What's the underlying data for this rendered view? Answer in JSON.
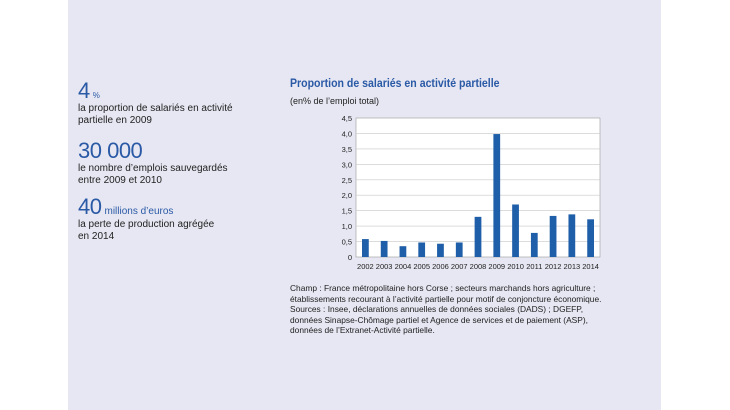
{
  "stats": [
    {
      "value": "4",
      "unit": "%",
      "desc": [
        "la proportion de salariés en activité",
        "partielle en 2009"
      ]
    },
    {
      "value": "30 000",
      "unit": "",
      "desc": [
        "le nombre d’emplois sauvegardés",
        "entre 2009 et 2010"
      ]
    },
    {
      "value": "40",
      "unit": "millions d’euros",
      "desc": [
        "la perte de production agrégée",
        "en 2014"
      ]
    }
  ],
  "chart_data": {
    "type": "bar",
    "title": "Proportion de salariés en activité partielle",
    "subtitle": "(en% de l’emploi total)",
    "categories": [
      "2002",
      "2003",
      "2004",
      "2005",
      "2006",
      "2007",
      "2008",
      "2009",
      "2010",
      "2011",
      "2012",
      "2013",
      "2014"
    ],
    "values": [
      0.58,
      0.52,
      0.35,
      0.47,
      0.43,
      0.47,
      1.3,
      3.98,
      1.7,
      0.78,
      1.33,
      1.38,
      1.22
    ],
    "y_ticks": [
      "0",
      "0,5",
      "1,0",
      "1,5",
      "2,0",
      "2,5",
      "3,0",
      "3,5",
      "4,0",
      "4,5"
    ],
    "ylim": [
      0,
      4.5
    ],
    "grid": true,
    "bar_color": "#1f5ea8"
  },
  "notes": [
    "Champ : France métropolitaine hors Corse ; secteurs marchands hors agriculture ;",
    "établissements recourant à l’activité partielle pour motif de conjoncture économique.",
    "Sources : Insee, déclarations annuelles de données sociales (DADS) ; DGEFP,",
    "données Sinapse-Chômage partiel et Agence de services et de paiement (ASP),",
    "données de l’Extranet-Activité partielle."
  ]
}
